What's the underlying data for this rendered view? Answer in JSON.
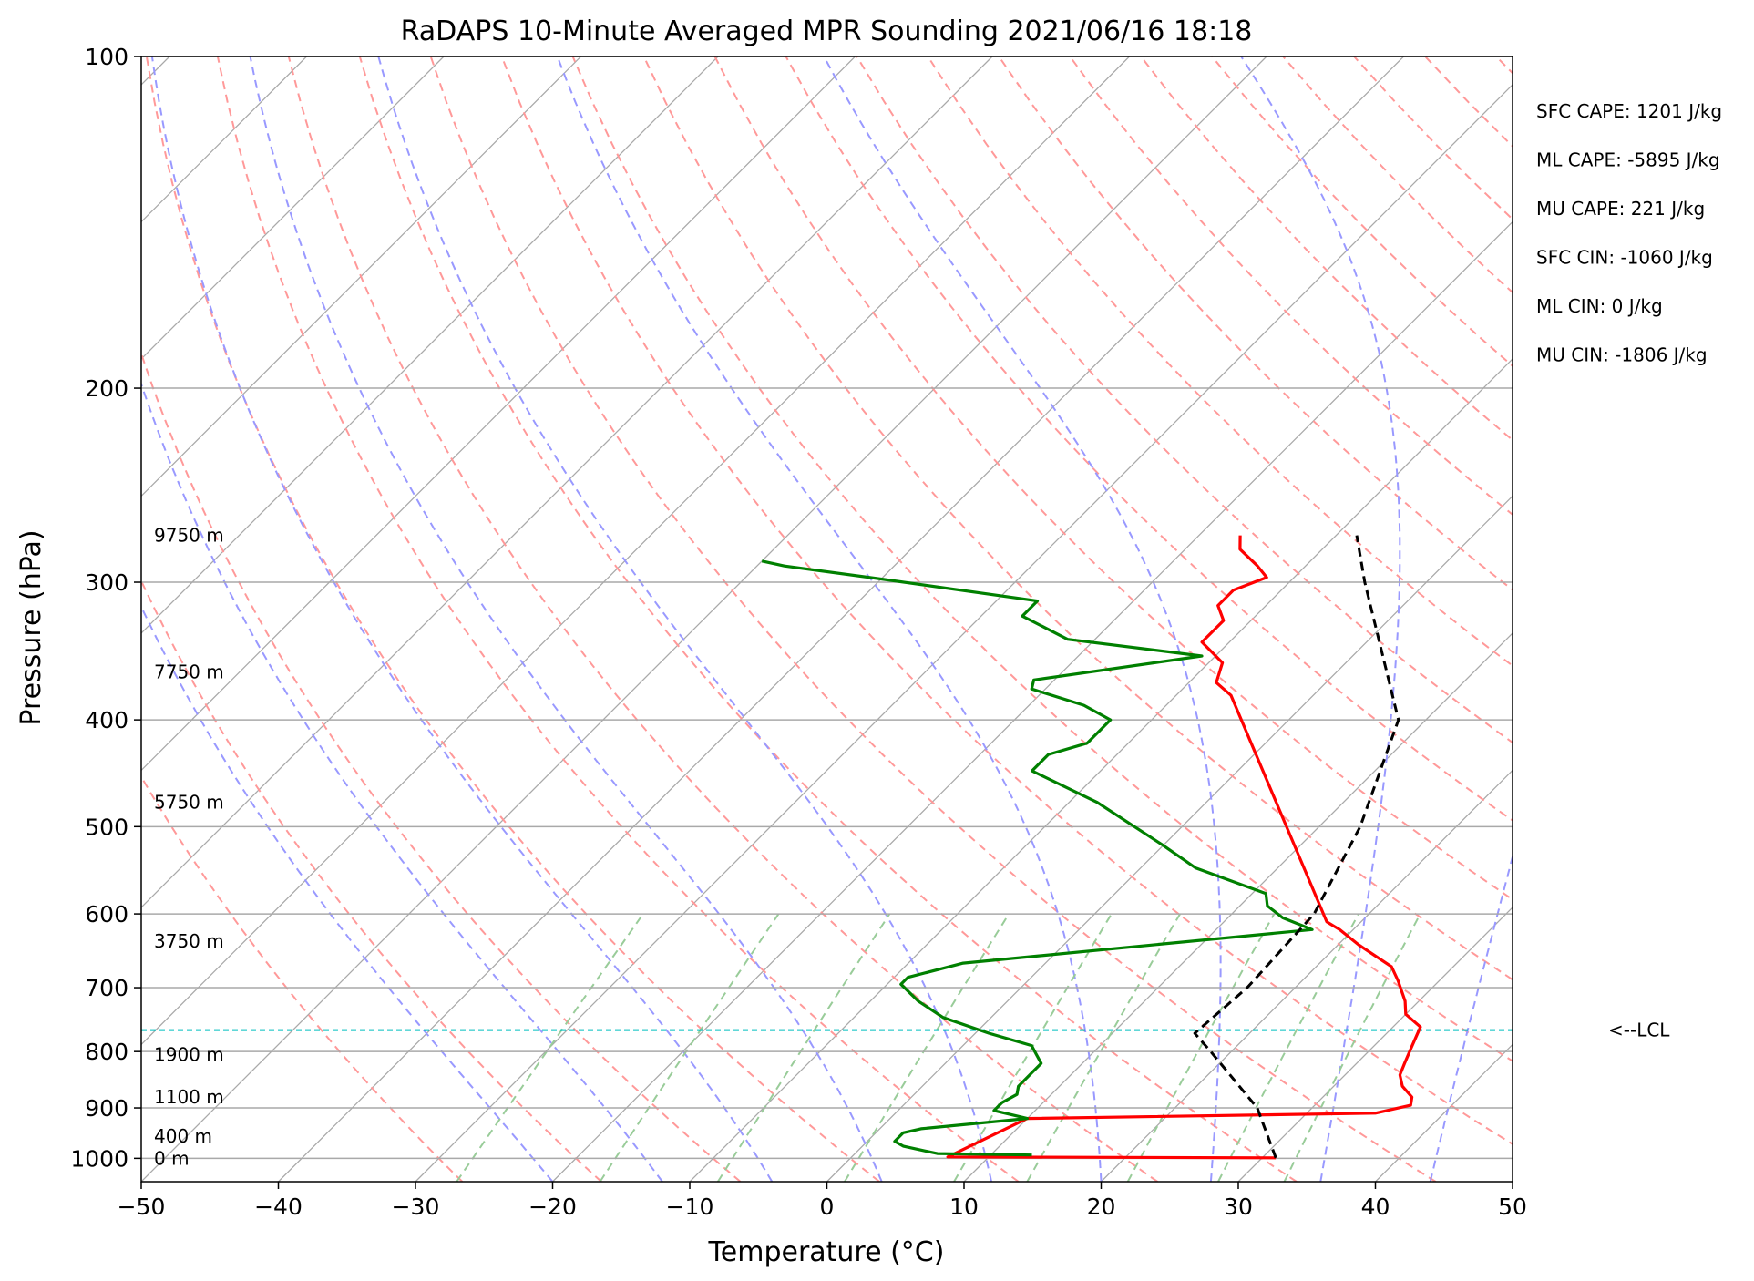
{
  "chart_data": {
    "type": "line",
    "subtype": "skew-t log-p sounding",
    "title": "RaDAPS 10-Minute Averaged MPR Sounding 2021/06/16 18:18",
    "xlabel": "Temperature (°C)",
    "ylabel": "Pressure (hPa)",
    "xlim": [
      -50,
      50
    ],
    "ylim": [
      1050,
      100
    ],
    "y_scale": "log",
    "grid": true,
    "x_ticks": [
      -50,
      -40,
      -30,
      -20,
      -10,
      0,
      10,
      20,
      30,
      40,
      50
    ],
    "x_tick_labels": [
      "−50",
      "−40",
      "−30",
      "−20",
      "−10",
      "0",
      "10",
      "20",
      "30",
      "40",
      "50"
    ],
    "y_ticks": [
      1000,
      900,
      800,
      700,
      600,
      500,
      400,
      300,
      200,
      100
    ],
    "y_tick_labels": [
      "1000",
      "900",
      "800",
      "700",
      "600",
      "500",
      "400",
      "300",
      "200",
      "100"
    ],
    "height_labels": [
      {
        "text": "0 m",
        "p": 1000
      },
      {
        "text": "400 m",
        "p": 955
      },
      {
        "text": "1100 m",
        "p": 880
      },
      {
        "text": "1900 m",
        "p": 805
      },
      {
        "text": "3750 m",
        "p": 635
      },
      {
        "text": "5750 m",
        "p": 475
      },
      {
        "text": "7750 m",
        "p": 362
      },
      {
        "text": "9750 m",
        "p": 272
      }
    ],
    "params": [
      "SFC CAPE: 1201 J/kg",
      "ML CAPE: -5895 J/kg",
      "MU CAPE: 221 J/kg",
      "SFC CIN: -1060 J/kg",
      "ML CIN: 0 J/kg",
      "MU CIN: -1806 J/kg"
    ],
    "lcl": {
      "label": "<--LCL",
      "p": 765
    },
    "colors": {
      "temperature": "#ff0000",
      "dewpoint": "#008000",
      "parcel": "#000000",
      "lcl_line": "#00bfbf",
      "isotherm": "#a9a9a9",
      "dry_adiabat": "#ff9999",
      "moist_adiabat": "#9999ff",
      "mixing_ratio": "#99cc99"
    },
    "series": [
      {
        "label": "temperature",
        "points": [
          [
            999,
            31.0
          ],
          [
            997,
            7.0
          ],
          [
            920,
            10.0
          ],
          [
            910,
            35.0
          ],
          [
            895,
            37.0
          ],
          [
            880,
            36.5
          ],
          [
            860,
            35.0
          ],
          [
            840,
            34.0
          ],
          [
            820,
            33.5
          ],
          [
            800,
            33.0
          ],
          [
            760,
            32.0
          ],
          [
            740,
            30.0
          ],
          [
            720,
            29.0
          ],
          [
            690,
            27.0
          ],
          [
            670,
            25.5
          ],
          [
            640,
            21.5
          ],
          [
            620,
            19.0
          ],
          [
            610,
            17.5
          ],
          [
            380,
            -6.0
          ],
          [
            370,
            -8.0
          ],
          [
            355,
            -9.0
          ],
          [
            340,
            -12.0
          ],
          [
            325,
            -12.0
          ],
          [
            315,
            -13.5
          ],
          [
            305,
            -13.5
          ],
          [
            297,
            -12.0
          ],
          [
            290,
            -13.5
          ],
          [
            280,
            -16.0
          ],
          [
            272,
            -17.0
          ]
        ]
      },
      {
        "label": "dewpoint",
        "points": [
          [
            993,
            13.0
          ],
          [
            990,
            6.0
          ],
          [
            975,
            3.0
          ],
          [
            965,
            2.0
          ],
          [
            948,
            2.0
          ],
          [
            940,
            3.0
          ],
          [
            920,
            10.0
          ],
          [
            905,
            7.0
          ],
          [
            890,
            7.0
          ],
          [
            875,
            7.5
          ],
          [
            860,
            7.0
          ],
          [
            840,
            7.0
          ],
          [
            820,
            7.0
          ],
          [
            805,
            6.0
          ],
          [
            790,
            5.0
          ],
          [
            770,
            1.0
          ],
          [
            745,
            -3.5
          ],
          [
            720,
            -6.5
          ],
          [
            695,
            -9.0
          ],
          [
            685,
            -9.0
          ],
          [
            665,
            -6.0
          ],
          [
            620,
            17.0
          ],
          [
            605,
            14.0
          ],
          [
            590,
            12.0
          ],
          [
            575,
            11.0
          ],
          [
            545,
            4.0
          ],
          [
            520,
            0.0
          ],
          [
            475,
            -8.0
          ],
          [
            445,
            -15.0
          ],
          [
            430,
            -15.0
          ],
          [
            420,
            -13.0
          ],
          [
            400,
            -13.0
          ],
          [
            388,
            -16.0
          ],
          [
            375,
            -21.0
          ],
          [
            368,
            -21.5
          ],
          [
            350,
            -11.0
          ],
          [
            338,
            -22.0
          ],
          [
            322,
            -27.0
          ],
          [
            312,
            -27.0
          ],
          [
            298,
            -40.0
          ],
          [
            290,
            -48.0
          ],
          [
            287,
            -50.0
          ]
        ]
      },
      {
        "label": "parcel",
        "points": [
          [
            999,
            31.0
          ],
          [
            900,
            26.0
          ],
          [
            800,
            18.5
          ],
          [
            770,
            16.0
          ],
          [
            700,
            16.5
          ],
          [
            600,
            16.0
          ],
          [
            500,
            13.0
          ],
          [
            400,
            8.0
          ],
          [
            300,
            -4.5
          ],
          [
            272,
            -8.5
          ]
        ]
      }
    ]
  }
}
